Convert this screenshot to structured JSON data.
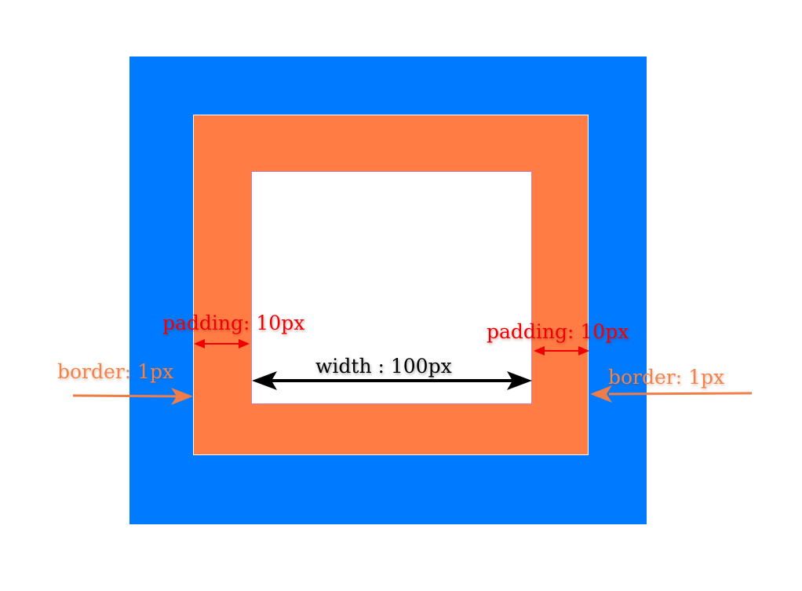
{
  "labels": {
    "padding_left": "padding: 10px",
    "padding_right": "padding: 10px",
    "border_left": "border: 1px",
    "border_right": "border: 1px",
    "width": "width : 100px"
  },
  "colors": {
    "margin_area": "#007bff",
    "padding_area": "#ff7d45",
    "content_area": "#ffffff",
    "padding_label": "#f00000",
    "border_label": "#f2834b",
    "border_arrow": "#f07c47",
    "padding_arrow": "#f00000",
    "width_label": "#000000"
  }
}
